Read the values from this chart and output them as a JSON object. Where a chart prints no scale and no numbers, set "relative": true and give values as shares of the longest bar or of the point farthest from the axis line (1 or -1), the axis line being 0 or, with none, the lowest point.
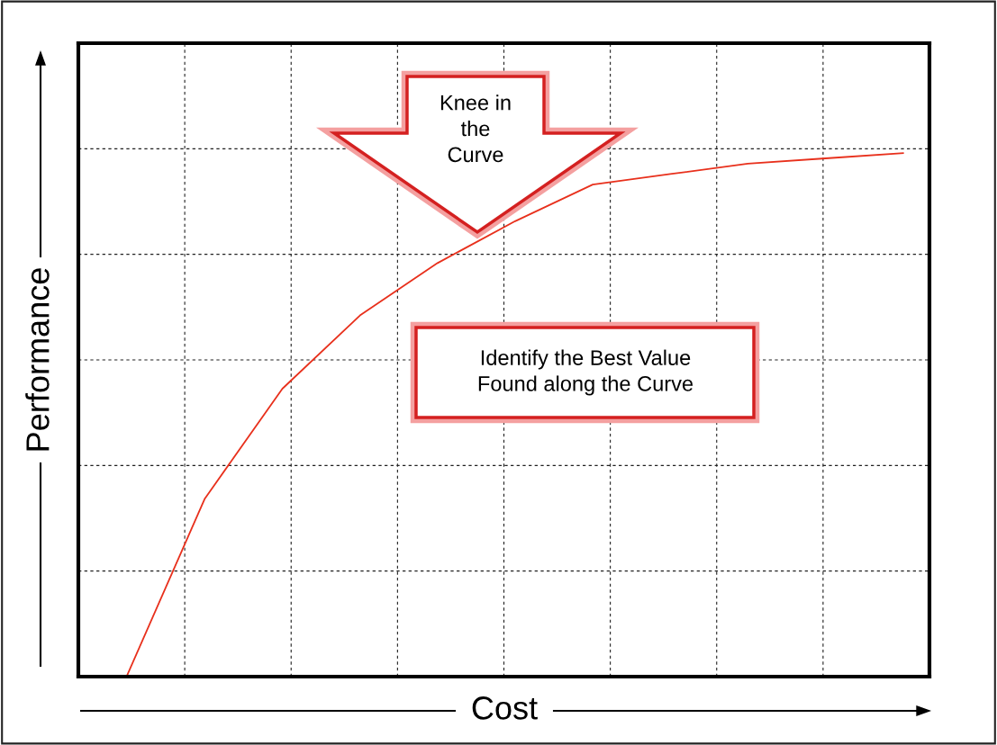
{
  "chart_data": {
    "type": "line",
    "relative": true,
    "xlabel": "Cost",
    "ylabel": "Performance",
    "categories": [
      null,
      null,
      null,
      null,
      null,
      null,
      null,
      null,
      null,
      null,
      null
    ],
    "series": [
      {
        "color": "#e8301c",
        "values": [
          0.003,
          0.34,
          0.55,
          0.69,
          0.79,
          0.87,
          0.94,
          0.96,
          0.98,
          0.99,
          1.0
        ]
      }
    ],
    "grid": true,
    "marker": "none",
    "line_style": "solid",
    "annotations": [
      "Knee in the Curve",
      "Identify the Best Value Found along the Curve"
    ]
  }
}
